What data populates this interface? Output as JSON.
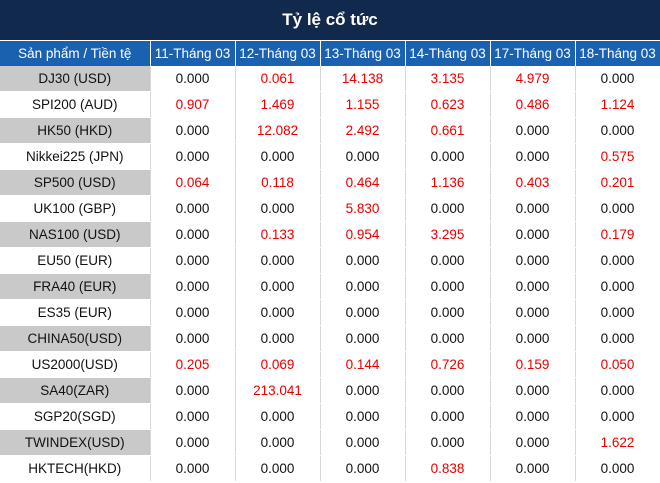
{
  "title": "Tỷ lệ cổ tức",
  "header": {
    "product": "Sản phẩm / Tiền tệ",
    "dates": [
      "11-Tháng 03",
      "12-Tháng 03",
      "13-Tháng 03",
      "14-Tháng 03",
      "17-Tháng 03",
      "18-Tháng 03"
    ]
  },
  "colors": {
    "title_bg": "#11294d",
    "header_bg": "#1a61b0",
    "highlight": "#e60000",
    "stripe": "#c9c9c9"
  },
  "rows": [
    {
      "product": "DJ30 (USD)",
      "values": [
        "0.000",
        "0.061",
        "14.138",
        "3.135",
        "4.979",
        "0.000"
      ]
    },
    {
      "product": "SPI200 (AUD)",
      "values": [
        "0.907",
        "1.469",
        "1.155",
        "0.623",
        "0.486",
        "1.124"
      ]
    },
    {
      "product": "HK50 (HKD)",
      "values": [
        "0.000",
        "12.082",
        "2.492",
        "0.661",
        "0.000",
        "0.000"
      ]
    },
    {
      "product": "Nikkei225 (JPN)",
      "values": [
        "0.000",
        "0.000",
        "0.000",
        "0.000",
        "0.000",
        "0.575"
      ]
    },
    {
      "product": "SP500 (USD)",
      "values": [
        "0.064",
        "0.118",
        "0.464",
        "1.136",
        "0.403",
        "0.201"
      ]
    },
    {
      "product": "UK100 (GBP)",
      "values": [
        "0.000",
        "0.000",
        "5.830",
        "0.000",
        "0.000",
        "0.000"
      ]
    },
    {
      "product": "NAS100 (USD)",
      "values": [
        "0.000",
        "0.133",
        "0.954",
        "3.295",
        "0.000",
        "0.179"
      ]
    },
    {
      "product": "EU50 (EUR)",
      "values": [
        "0.000",
        "0.000",
        "0.000",
        "0.000",
        "0.000",
        "0.000"
      ]
    },
    {
      "product": "FRA40 (EUR)",
      "values": [
        "0.000",
        "0.000",
        "0.000",
        "0.000",
        "0.000",
        "0.000"
      ]
    },
    {
      "product": "ES35 (EUR)",
      "values": [
        "0.000",
        "0.000",
        "0.000",
        "0.000",
        "0.000",
        "0.000"
      ]
    },
    {
      "product": "CHINA50(USD)",
      "values": [
        "0.000",
        "0.000",
        "0.000",
        "0.000",
        "0.000",
        "0.000"
      ]
    },
    {
      "product": "US2000(USD)",
      "values": [
        "0.205",
        "0.069",
        "0.144",
        "0.726",
        "0.159",
        "0.050"
      ]
    },
    {
      "product": "SA40(ZAR)",
      "values": [
        "0.000",
        "213.041",
        "0.000",
        "0.000",
        "0.000",
        "0.000"
      ]
    },
    {
      "product": "SGP20(SGD)",
      "values": [
        "0.000",
        "0.000",
        "0.000",
        "0.000",
        "0.000",
        "0.000"
      ]
    },
    {
      "product": "TWINDEX(USD)",
      "values": [
        "0.000",
        "0.000",
        "0.000",
        "0.000",
        "0.000",
        "1.622"
      ]
    },
    {
      "product": "HKTECH(HKD)",
      "values": [
        "0.000",
        "0.000",
        "0.000",
        "0.838",
        "0.000",
        "0.000"
      ]
    }
  ]
}
